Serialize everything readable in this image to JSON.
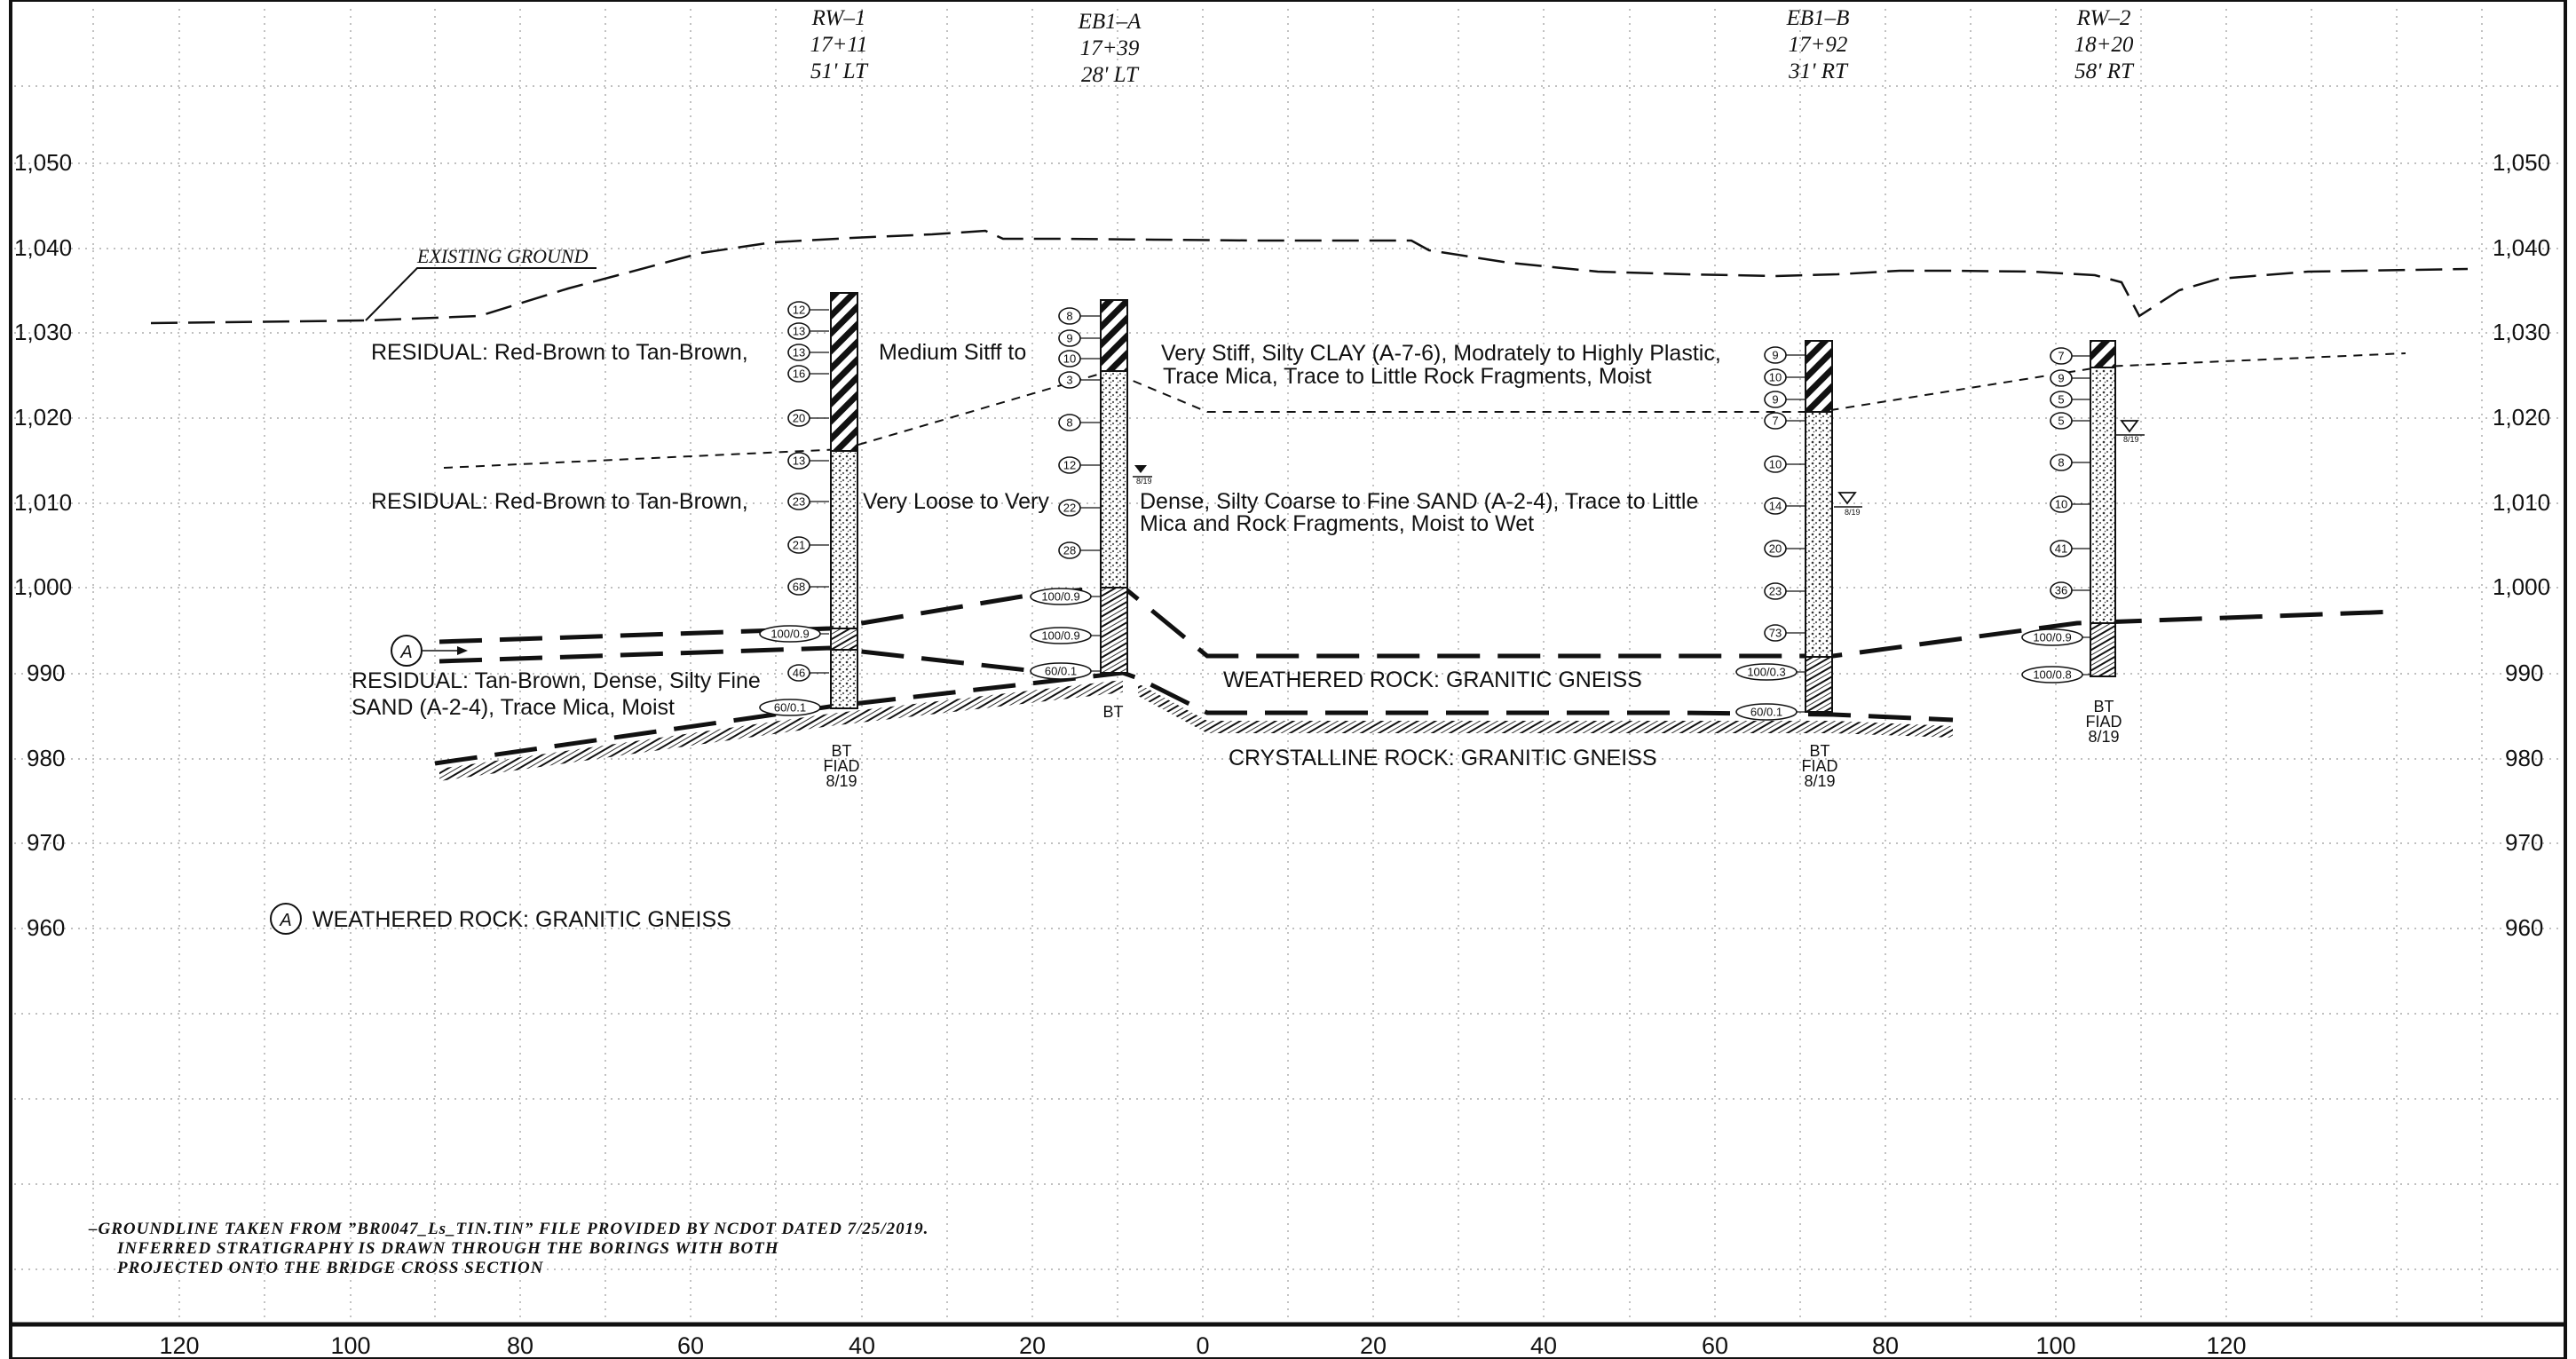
{
  "elevation_labels": [
    "1,050",
    "1,040",
    "1,030",
    "1,020",
    "1,010",
    "1,000",
    "990",
    "980",
    "970",
    "960"
  ],
  "station_labels": [
    "120",
    "100",
    "80",
    "60",
    "40",
    "20",
    "0",
    "20",
    "40",
    "60",
    "80",
    "100",
    "120"
  ],
  "borings": [
    {
      "id": "RW–1",
      "station": "17+11",
      "offset": "51' LT",
      "blows": [
        "12",
        "13",
        "13",
        "16",
        "20",
        "13",
        "23",
        "21",
        "68",
        "100/0.9",
        "46",
        "60/0.1"
      ],
      "bottom": [
        "BT",
        "FIAD",
        "8/19"
      ]
    },
    {
      "id": "EB1–A",
      "station": "17+39",
      "offset": "28' LT",
      "blows": [
        "8",
        "9",
        "10",
        "3",
        "8",
        "12",
        "22",
        "28",
        "100/0.9",
        "100/0.9",
        "60/0.1"
      ],
      "bottom": [
        "BT"
      ],
      "water_label": "8/19"
    },
    {
      "id": "EB1–B",
      "station": "17+92",
      "offset": "31' RT",
      "blows": [
        "9",
        "10",
        "9",
        "7",
        "10",
        "14",
        "20",
        "23",
        "73",
        "100/0.3",
        "60/0.1"
      ],
      "bottom": [
        "BT",
        "FIAD",
        "8/19"
      ],
      "water_label": "8/19"
    },
    {
      "id": "RW–2",
      "station": "18+20",
      "offset": "58' RT",
      "blows": [
        "7",
        "9",
        "5",
        "5",
        "8",
        "10",
        "41",
        "36",
        "100/0.9",
        "100/0.8"
      ],
      "bottom": [
        "BT",
        "FIAD",
        "8/19"
      ],
      "water_label": "8/19"
    }
  ],
  "existing_ground_label": "EXISTING GROUND",
  "strata": {
    "clay_part1": "RESIDUAL: Red-Brown to Tan-Brown,",
    "clay_part2": "Medium Sitff to",
    "clay_part3a": "Very Stiff, Silty CLAY  (A-7-6), Modrately to Highly Plastic,",
    "clay_part3b": "Trace Mica, Trace to Little Rock Fragments, Moist",
    "sand_part1": "RESIDUAL: Red-Brown to Tan-Brown,",
    "sand_part2": "Very Loose to Very",
    "sand_part3a": "Dense, Silty Coarse to Fine SAND (A-2-4), Trace to Little",
    "sand_part3b": "Mica and Rock Fragments, Moist to Wet",
    "lower_sand_a": "RESIDUAL: Tan-Brown, Dense, Silty Fine",
    "lower_sand_b": "SAND (A-2-4), Trace Mica, Moist",
    "weathered_rock": "WEATHERED ROCK: GRANITIC GNEISS",
    "crystalline_rock": "CRYSTALLINE ROCK: GRANITIC GNEISS"
  },
  "legend": {
    "symbol": "A",
    "text": "WEATHERED ROCK: GRANITIC GNEISS"
  },
  "callout_symbol": "A",
  "notes": [
    "–GROUNDLINE  TAKEN  FROM  ”BR0047_Ls_TIN.TIN”  FILE  PROVIDED  BY  NCDOT  DATED  7/25/2019.",
    "INFERRED  STRATIGRAPHY  IS  DRAWN  THROUGH  THE  BORINGS  WITH  BOTH",
    "PROJECTED  ONTO  THE  BRIDGE  CROSS  SECTION"
  ]
}
